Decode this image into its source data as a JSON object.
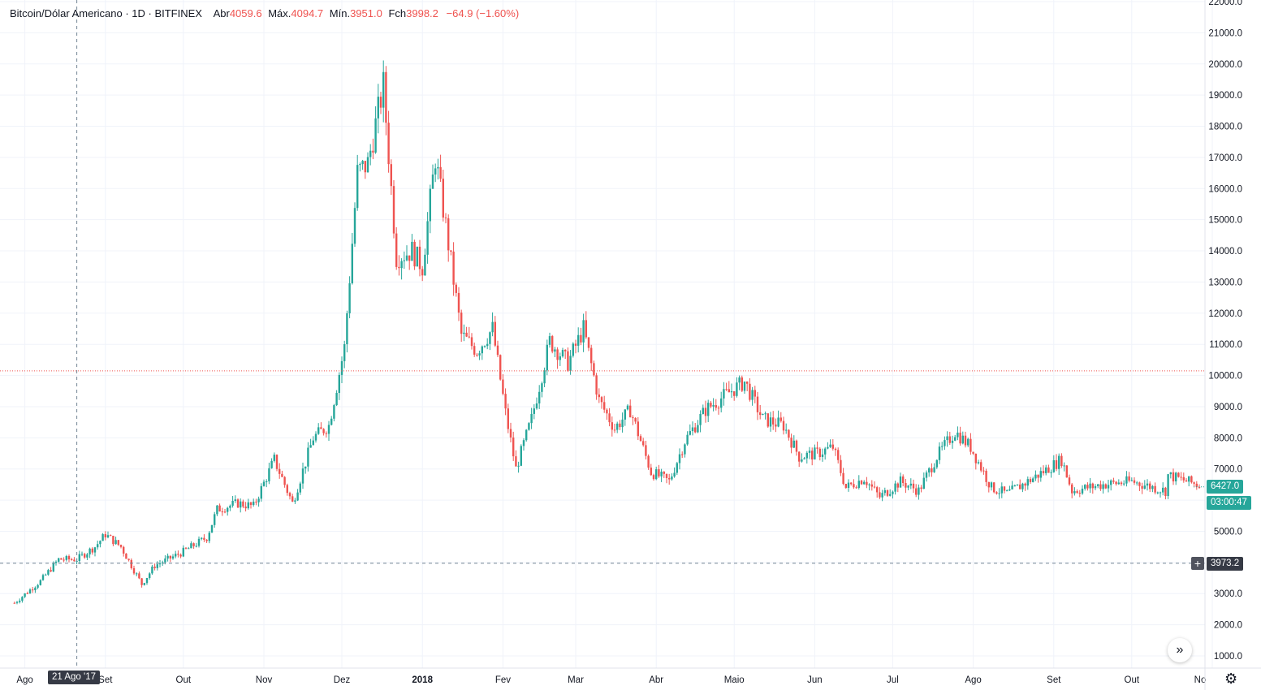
{
  "legend": {
    "symbol": "Bitcoin/Dólar Americano · 1D · BITFINEX",
    "open_label": "Abr",
    "open": "4059.6",
    "high_label": "Máx.",
    "high": "4094.7",
    "low_label": "Mín.",
    "low": "3951.0",
    "close_label": "Fch",
    "close": "3998.2",
    "change": "−64.9 (−1.60%)"
  },
  "badges": {
    "last_price": "6427.0",
    "countdown": "03:00:47",
    "crosshair_price": "3973.2",
    "crosshair_date": "21 Ago '17"
  },
  "colors": {
    "up": "#26a69a",
    "down": "#ef5350",
    "grid": "#f0f3fa",
    "last_price_line": "#ef5350"
  },
  "icons": {
    "scroll": "double-chevron-right-icon",
    "settings": "gear-icon",
    "crosshair": "plus-icon"
  },
  "chart_data": {
    "type": "candlestick",
    "y_ticks": [
      "1000.0",
      "2000.0",
      "3000.0",
      "4000.0",
      "5000.0",
      "6000.0",
      "7000.0",
      "8000.0",
      "9000.0",
      "10000.0",
      "11000.0",
      "12000.0",
      "13000.0",
      "14000.0",
      "15000.0",
      "16000.0",
      "17000.0",
      "18000.0",
      "19000.0",
      "20000.0",
      "21000.0",
      "22000.0"
    ],
    "x_ticks": [
      "Ago",
      "Set",
      "Out",
      "Nov",
      "Dez",
      "2018",
      "Fev",
      "Mar",
      "Abr",
      "Maio",
      "Jun",
      "Jul",
      "Ago",
      "Set",
      "Out",
      "No"
    ],
    "ylim": [
      500,
      22100
    ],
    "reference_line_price": 10150,
    "crosshair_price": 3973.2,
    "series": [
      {
        "date": "2017-07-28",
        "close": 2700
      },
      {
        "date": "2017-08-07",
        "close": 3400
      },
      {
        "date": "2017-08-14",
        "close": 4100
      },
      {
        "date": "2017-08-21",
        "close": 4100
      },
      {
        "date": "2017-08-28",
        "close": 4500
      },
      {
        "date": "2017-09-01",
        "close": 4900
      },
      {
        "date": "2017-09-07",
        "close": 4500
      },
      {
        "date": "2017-09-15",
        "close": 3300
      },
      {
        "date": "2017-09-20",
        "close": 3900
      },
      {
        "date": "2017-09-30",
        "close": 4300
      },
      {
        "date": "2017-10-10",
        "close": 4800
      },
      {
        "date": "2017-10-14",
        "close": 5700
      },
      {
        "date": "2017-10-22",
        "close": 5900
      },
      {
        "date": "2017-10-28",
        "close": 5800
      },
      {
        "date": "2017-11-05",
        "close": 7300
      },
      {
        "date": "2017-11-12",
        "close": 5900
      },
      {
        "date": "2017-11-20",
        "close": 8000
      },
      {
        "date": "2017-11-26",
        "close": 8400
      },
      {
        "date": "2017-12-02",
        "close": 10900
      },
      {
        "date": "2017-12-07",
        "close": 16500
      },
      {
        "date": "2017-12-11",
        "close": 16800
      },
      {
        "date": "2017-12-17",
        "close": 19300
      },
      {
        "date": "2017-12-22",
        "close": 13800
      },
      {
        "date": "2017-12-28",
        "close": 14000
      },
      {
        "date": "2018-01-01",
        "close": 13500
      },
      {
        "date": "2018-01-06",
        "close": 17000
      },
      {
        "date": "2018-01-10",
        "close": 14800
      },
      {
        "date": "2018-01-16",
        "close": 11300
      },
      {
        "date": "2018-01-22",
        "close": 10800
      },
      {
        "date": "2018-01-28",
        "close": 11500
      },
      {
        "date": "2018-02-02",
        "close": 8800
      },
      {
        "date": "2018-02-06",
        "close": 7000
      },
      {
        "date": "2018-02-12",
        "close": 8600
      },
      {
        "date": "2018-02-19",
        "close": 11100
      },
      {
        "date": "2018-02-26",
        "close": 10400
      },
      {
        "date": "2018-03-04",
        "close": 11500
      },
      {
        "date": "2018-03-10",
        "close": 9200
      },
      {
        "date": "2018-03-16",
        "close": 8300
      },
      {
        "date": "2018-03-22",
        "close": 8900
      },
      {
        "date": "2018-03-30",
        "close": 6900
      },
      {
        "date": "2018-04-06",
        "close": 6600
      },
      {
        "date": "2018-04-12",
        "close": 7900
      },
      {
        "date": "2018-04-20",
        "close": 8900
      },
      {
        "date": "2018-04-28",
        "close": 9400
      },
      {
        "date": "2018-05-05",
        "close": 9800
      },
      {
        "date": "2018-05-12",
        "close": 8600
      },
      {
        "date": "2018-05-20",
        "close": 8400
      },
      {
        "date": "2018-05-26",
        "close": 7400
      },
      {
        "date": "2018-06-02",
        "close": 7500
      },
      {
        "date": "2018-06-08",
        "close": 7700
      },
      {
        "date": "2018-06-13",
        "close": 6400
      },
      {
        "date": "2018-06-20",
        "close": 6700
      },
      {
        "date": "2018-06-26",
        "close": 6100
      },
      {
        "date": "2018-07-04",
        "close": 6600
      },
      {
        "date": "2018-07-11",
        "close": 6300
      },
      {
        "date": "2018-07-18",
        "close": 7400
      },
      {
        "date": "2018-07-25",
        "close": 8200
      },
      {
        "date": "2018-07-31",
        "close": 7700
      },
      {
        "date": "2018-08-08",
        "close": 6400
      },
      {
        "date": "2018-08-14",
        "close": 6200
      },
      {
        "date": "2018-08-24",
        "close": 6700
      },
      {
        "date": "2018-09-04",
        "close": 7300
      },
      {
        "date": "2018-09-08",
        "close": 6300
      },
      {
        "date": "2018-09-20",
        "close": 6500
      },
      {
        "date": "2018-10-01",
        "close": 6600
      },
      {
        "date": "2018-10-14",
        "close": 6300
      },
      {
        "date": "2018-10-15",
        "close": 6800
      },
      {
        "date": "2018-10-28",
        "close": 6450
      },
      {
        "date": "2018-11-03",
        "close": 6427
      }
    ]
  }
}
